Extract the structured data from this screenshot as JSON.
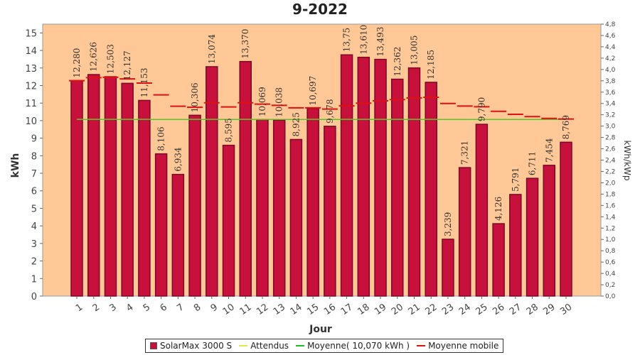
{
  "chart_data": {
    "type": "bar",
    "title": "9-2022",
    "xlabel": "Jour",
    "ylabel": "kWh",
    "ylabel_right": "kWh/kWp",
    "ylim": [
      0,
      15.5
    ],
    "yticks": [
      0,
      1,
      2,
      3,
      4,
      5,
      6,
      7,
      8,
      9,
      10,
      11,
      12,
      13,
      14,
      15
    ],
    "ylim_right": [
      0,
      4.8
    ],
    "yticks_right": [
      "0,0",
      "0,2",
      "0,4",
      "0,6",
      "0,8",
      "1,0",
      "1,2",
      "1,4",
      "1,6",
      "1,8",
      "2,0",
      "2,2",
      "2,4",
      "2,6",
      "2,8",
      "3,0",
      "3,2",
      "3,4",
      "3,6",
      "3,8",
      "4,0",
      "4,2",
      "4,4",
      "4,6",
      "4,8"
    ],
    "categories": [
      "1",
      "2",
      "3",
      "4",
      "5",
      "6",
      "7",
      "8",
      "9",
      "10",
      "11",
      "12",
      "13",
      "14",
      "15",
      "16",
      "17",
      "18",
      "19",
      "20",
      "21",
      "22",
      "23",
      "24",
      "25",
      "26",
      "27",
      "28",
      "29",
      "30"
    ],
    "series": [
      {
        "name": "SolarMax 3000 S",
        "type": "bar",
        "color": "#c8103c",
        "values": [
          12.28,
          12.626,
          12.503,
          12.127,
          11.153,
          8.106,
          6.934,
          10.306,
          13.074,
          8.595,
          13.37,
          10.069,
          10.038,
          8.925,
          10.697,
          9.678,
          13.75,
          13.61,
          13.493,
          12.362,
          13.005,
          12.185,
          3.239,
          7.321,
          9.79,
          4.126,
          5.791,
          6.711,
          7.454,
          8.769
        ],
        "labels": [
          "12,280",
          "12,626",
          "12,503",
          "12,127",
          "11,153",
          "8,106",
          "6,934",
          "10,306",
          "13,074",
          "8,595",
          "13,370",
          "10,069",
          "10,038",
          "8,925",
          "10,697",
          "9,678",
          "13,75",
          "13,610",
          "13,493",
          "12,362",
          "13,005",
          "12,185",
          "3,239",
          "7,321",
          "9,790",
          "4,126",
          "5,791",
          "6,711",
          "7,454",
          "8,769"
        ]
      },
      {
        "name": "Attendus",
        "type": "line",
        "color": "#e6e64c",
        "values": [
          10.07,
          10.07,
          10.07,
          10.07,
          10.07,
          10.07,
          10.07,
          10.07,
          10.07,
          10.07,
          10.07,
          10.07,
          10.07,
          10.07,
          10.07,
          10.07,
          10.07,
          10.07,
          10.07,
          10.07,
          10.07,
          10.07,
          10.07,
          10.07,
          10.07,
          10.07,
          10.07,
          10.07,
          10.07,
          10.07
        ]
      },
      {
        "name": "Moyenne( 10,070 kWh )",
        "type": "line",
        "color": "#22bb22",
        "values": [
          10.07,
          10.07,
          10.07,
          10.07,
          10.07,
          10.07,
          10.07,
          10.07,
          10.07,
          10.07,
          10.07,
          10.07,
          10.07,
          10.07,
          10.07,
          10.07,
          10.07,
          10.07,
          10.07,
          10.07,
          10.07,
          10.07,
          10.07,
          10.07,
          10.07,
          10.07,
          10.07,
          10.07,
          10.07,
          10.07
        ]
      },
      {
        "name": "Moyenne mobile",
        "type": "step",
        "color": "#dd1111",
        "values": [
          12.28,
          12.45,
          12.47,
          12.38,
          12.14,
          11.47,
          10.82,
          10.76,
          11.02,
          10.78,
          11.02,
          10.94,
          10.87,
          10.73,
          10.73,
          10.66,
          10.84,
          11.0,
          11.13,
          11.2,
          11.29,
          11.33,
          10.98,
          10.83,
          10.79,
          10.53,
          10.36,
          10.23,
          10.13,
          10.09
        ]
      }
    ],
    "grid": false,
    "legend": "bottom"
  },
  "legend": {
    "items": [
      {
        "label": "SolarMax 3000 S",
        "kind": "box",
        "color": "#c8103c"
      },
      {
        "label": "Attendus",
        "kind": "line",
        "color": "#e6e64c"
      },
      {
        "label": "Moyenne( 10,070 kWh )",
        "kind": "line",
        "color": "#22bb22"
      },
      {
        "label": "Moyenne mobile",
        "kind": "line",
        "color": "#dd1111"
      }
    ]
  },
  "colors": {
    "plot_background": "#ffc896",
    "bar_fill": "#c8103c",
    "bar_edge": "#7a0a26"
  }
}
